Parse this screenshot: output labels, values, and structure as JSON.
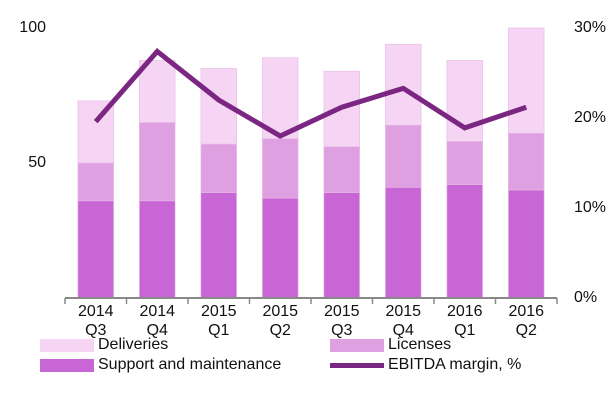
{
  "chart_data": {
    "type": "bar",
    "categories": [
      "2014 Q3",
      "2014 Q4",
      "2015 Q1",
      "2015 Q2",
      "2015 Q3",
      "2015 Q4",
      "2016 Q1",
      "2016 Q2"
    ],
    "series": [
      {
        "name": "Support and maintenance",
        "color": "#c966d6",
        "values": [
          36,
          36,
          39,
          37,
          39,
          41,
          42,
          40
        ]
      },
      {
        "name": "Licenses",
        "color": "#dfa0e2",
        "values": [
          14,
          29,
          18,
          22,
          17,
          23,
          16,
          21
        ]
      },
      {
        "name": "Deliveries",
        "color": "#f6d4f3",
        "values": [
          23,
          23,
          28,
          30,
          28,
          30,
          30,
          39
        ]
      },
      {
        "name": "EBITDA margin, %",
        "color": "#7b2682",
        "type": "line",
        "axis": "y2",
        "values": [
          19.6,
          27.4,
          22,
          18,
          21.2,
          23.3,
          18.9,
          21.2
        ]
      }
    ],
    "ylim": [
      0,
      100
    ],
    "yticks": [
      50,
      100
    ],
    "y2lim": [
      0,
      30
    ],
    "y2ticks": [
      {
        "value": 0,
        "label": "0%"
      },
      {
        "value": 10,
        "label": "10%"
      },
      {
        "value": 20,
        "label": "20%"
      },
      {
        "value": 30,
        "label": "30%"
      }
    ],
    "stacked": true
  }
}
